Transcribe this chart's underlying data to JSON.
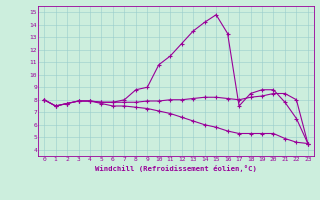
{
  "xlabel": "Windchill (Refroidissement éolien,°C)",
  "bg_color": "#cceedd",
  "line_color": "#990099",
  "xlim": [
    -0.5,
    23.5
  ],
  "ylim": [
    3.5,
    15.5
  ],
  "yticks": [
    4,
    5,
    6,
    7,
    8,
    9,
    10,
    11,
    12,
    13,
    14,
    15
  ],
  "xticks": [
    0,
    1,
    2,
    3,
    4,
    5,
    6,
    7,
    8,
    9,
    10,
    11,
    12,
    13,
    14,
    15,
    16,
    17,
    18,
    19,
    20,
    21,
    22,
    23
  ],
  "line1_x": [
    0,
    1,
    2,
    3,
    4,
    5,
    6,
    7,
    8,
    9,
    10,
    11,
    12,
    13,
    14,
    15,
    16,
    17,
    18,
    19,
    20,
    21,
    22,
    23
  ],
  "line1_y": [
    8.0,
    7.5,
    7.7,
    7.9,
    7.9,
    7.8,
    7.8,
    8.0,
    8.8,
    9.0,
    10.8,
    11.5,
    12.5,
    13.5,
    14.2,
    14.8,
    13.3,
    7.5,
    8.5,
    8.8,
    8.8,
    7.8,
    6.5,
    4.5
  ],
  "line2_x": [
    0,
    1,
    2,
    3,
    4,
    5,
    6,
    7,
    8,
    9,
    10,
    11,
    12,
    13,
    14,
    15,
    16,
    17,
    18,
    19,
    20,
    21,
    22,
    23
  ],
  "line2_y": [
    8.0,
    7.5,
    7.7,
    7.9,
    7.9,
    7.8,
    7.8,
    7.8,
    7.8,
    7.9,
    7.9,
    8.0,
    8.0,
    8.1,
    8.2,
    8.2,
    8.1,
    8.0,
    8.2,
    8.3,
    8.5,
    8.5,
    8.0,
    4.5
  ],
  "line3_x": [
    0,
    1,
    2,
    3,
    4,
    5,
    6,
    7,
    8,
    9,
    10,
    11,
    12,
    13,
    14,
    15,
    16,
    17,
    18,
    19,
    20,
    21,
    22,
    23
  ],
  "line3_y": [
    8.0,
    7.5,
    7.7,
    7.9,
    7.9,
    7.7,
    7.5,
    7.5,
    7.4,
    7.3,
    7.1,
    6.9,
    6.6,
    6.3,
    6.0,
    5.8,
    5.5,
    5.3,
    5.3,
    5.3,
    5.3,
    4.9,
    4.6,
    4.5
  ]
}
